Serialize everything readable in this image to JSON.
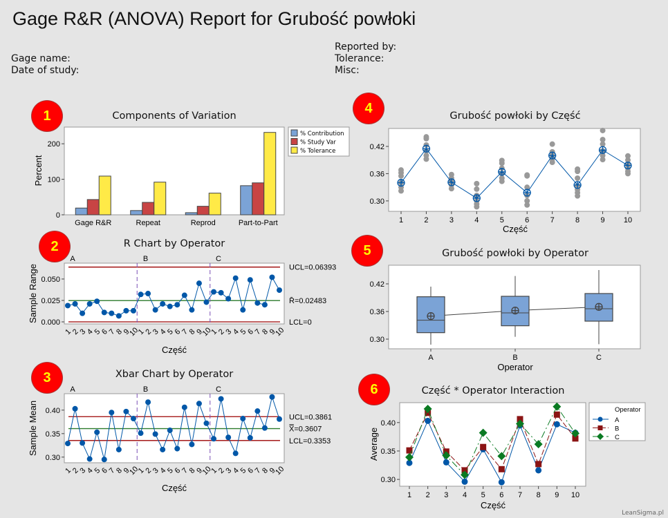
{
  "title": "Gage R&R (ANOVA) Report for Grubość powłoki",
  "header": {
    "gage_name": "Gage name:",
    "date_of_study": "Date of study:",
    "reported_by": "Reported by:",
    "tolerance": "Tolerance:",
    "misc": "Misc:"
  },
  "badges": [
    "1",
    "2",
    "3",
    "4",
    "5",
    "6"
  ],
  "watermark": "LeanSigma.pl",
  "colors": {
    "contribution": "#7ba3d6",
    "study_var": "#c84444",
    "tolerance": "#ffea47",
    "series_a": "#0057a8",
    "series_b": "#8b1414",
    "series_c": "#0a7a22",
    "limit": "#9b0000",
    "center": "#2a7a2a",
    "divider": "#7a4fb5",
    "grey": "#999999"
  },
  "chart_data": [
    {
      "type": "bar",
      "title": "Components of Variation",
      "ylabel": "Percent",
      "xlabel": "",
      "categories": [
        "Gage R&R",
        "Repeat",
        "Reprod",
        "Part-to-Part"
      ],
      "series": [
        {
          "name": "% Contribution",
          "values": [
            19,
            12,
            6,
            82
          ]
        },
        {
          "name": "% Study Var",
          "values": [
            43,
            35,
            24,
            90
          ]
        },
        {
          "name": "% Tolerance",
          "values": [
            109,
            92,
            61,
            232
          ]
        }
      ],
      "ylim": [
        0,
        247
      ],
      "yticks": [
        0,
        100,
        200
      ],
      "ytick_labels": [
        "0",
        "100",
        "200"
      ],
      "legend": "right"
    },
    {
      "type": "line",
      "title": "R Chart by Operator",
      "ylabel": "Sample Range",
      "xlabel": "Część",
      "operators": [
        "A",
        "B",
        "C"
      ],
      "parts": [
        "1",
        "2",
        "3",
        "4",
        "5",
        "6",
        "7",
        "8",
        "9",
        "10"
      ],
      "values": [
        [
          0.019,
          0.021,
          0.01,
          0.021,
          0.024,
          0.011,
          0.01,
          0.007,
          0.013,
          0.013
        ],
        [
          0.032,
          0.033,
          0.014,
          0.021,
          0.018,
          0.02,
          0.031,
          0.014,
          0.045,
          0.023
        ],
        [
          0.035,
          0.034,
          0.027,
          0.051,
          0.014,
          0.049,
          0.022,
          0.02,
          0.052,
          0.037
        ]
      ],
      "ucl": 0.06393,
      "center": 0.02483,
      "lcl": 0,
      "limit_labels": [
        "UCL=0.06393",
        "R̄=0.02483",
        "LCL=0"
      ],
      "ylim": [
        -0.0024,
        0.0685
      ],
      "yticks": [
        0,
        0.025,
        0.05
      ],
      "ytick_labels": [
        "0.000",
        "0.025",
        "0.050"
      ]
    },
    {
      "type": "line",
      "title": "Xbar Chart by Operator",
      "ylabel": "Sample Mean",
      "xlabel": "Część",
      "operators": [
        "A",
        "B",
        "C"
      ],
      "parts": [
        "1",
        "2",
        "3",
        "4",
        "5",
        "6",
        "7",
        "8",
        "9",
        "10"
      ],
      "values": [
        [
          0.329,
          0.403,
          0.33,
          0.296,
          0.353,
          0.295,
          0.395,
          0.316,
          0.397,
          0.382
        ],
        [
          0.351,
          0.417,
          0.349,
          0.316,
          0.357,
          0.318,
          0.406,
          0.327,
          0.414,
          0.372
        ],
        [
          0.339,
          0.424,
          0.342,
          0.308,
          0.382,
          0.341,
          0.398,
          0.362,
          0.428,
          0.381
        ]
      ],
      "ucl": 0.3861,
      "center": 0.3607,
      "lcl": 0.3353,
      "limit_labels": [
        "UCL=0.3861",
        "X̿=0.3607",
        "LCL=0.3353"
      ],
      "ylim": [
        0.288,
        0.435
      ],
      "yticks": [
        0.3,
        0.35,
        0.4
      ],
      "ytick_labels": [
        "0.30",
        "0.35",
        "0.40"
      ]
    },
    {
      "type": "scatter",
      "title": "Grubość powłoki by Część",
      "xlabel": "Część",
      "ylabel": "",
      "categories": [
        "1",
        "2",
        "3",
        "4",
        "5",
        "6",
        "7",
        "8",
        "9",
        "10"
      ],
      "means": [
        0.34,
        0.415,
        0.341,
        0.306,
        0.364,
        0.318,
        0.4,
        0.335,
        0.412,
        0.378
      ],
      "points": [
        [
          0.322,
          0.33,
          0.34,
          0.355,
          0.362,
          0.368
        ],
        [
          0.392,
          0.4,
          0.41,
          0.423,
          0.437,
          0.441
        ],
        [
          0.327,
          0.335,
          0.342,
          0.35,
          0.358
        ],
        [
          0.287,
          0.293,
          0.3,
          0.312,
          0.326,
          0.338
        ],
        [
          0.343,
          0.35,
          0.36,
          0.372,
          0.383,
          0.389
        ],
        [
          0.291,
          0.3,
          0.312,
          0.33,
          0.355,
          0.357
        ],
        [
          0.385,
          0.392,
          0.4,
          0.408,
          0.425
        ],
        [
          0.311,
          0.318,
          0.325,
          0.333,
          0.35,
          0.365,
          0.37
        ],
        [
          0.391,
          0.4,
          0.41,
          0.425,
          0.435,
          0.455
        ],
        [
          0.36,
          0.365,
          0.372,
          0.38,
          0.39,
          0.399
        ]
      ],
      "ylim": [
        0.277,
        0.4595
      ],
      "yticks": [
        0.3,
        0.36,
        0.42
      ],
      "ytick_labels": [
        "0.30",
        "0.36",
        "0.42"
      ]
    },
    {
      "type": "box",
      "title": "Grubość powłoki by Operator",
      "xlabel": "Operator",
      "ylabel": "",
      "categories": [
        "A",
        "B",
        "C"
      ],
      "boxes": [
        {
          "min": 0.288,
          "q1": 0.314,
          "median": 0.341,
          "q3": 0.392,
          "max": 0.414,
          "mean": 0.35
        },
        {
          "min": 0.305,
          "q1": 0.329,
          "median": 0.357,
          "q3": 0.393,
          "max": 0.437,
          "mean": 0.362
        },
        {
          "min": 0.289,
          "q1": 0.339,
          "median": 0.366,
          "q3": 0.399,
          "max": 0.45,
          "mean": 0.37
        }
      ],
      "ylim": [
        0.279,
        0.4605
      ],
      "yticks": [
        0.3,
        0.36,
        0.42
      ],
      "ytick_labels": [
        "0.30",
        "0.36",
        "0.42"
      ]
    },
    {
      "type": "line",
      "title": "Część * Operator Interaction",
      "xlabel": "Część",
      "ylabel": "Average",
      "categories": [
        "1",
        "2",
        "3",
        "4",
        "5",
        "6",
        "7",
        "8",
        "9",
        "10"
      ],
      "legend_title": "Operator",
      "series": [
        {
          "name": "A",
          "values": [
            0.329,
            0.403,
            0.33,
            0.296,
            0.353,
            0.295,
            0.395,
            0.316,
            0.397,
            0.382
          ]
        },
        {
          "name": "B",
          "values": [
            0.351,
            0.417,
            0.349,
            0.316,
            0.357,
            0.318,
            0.406,
            0.327,
            0.414,
            0.372
          ]
        },
        {
          "name": "C",
          "values": [
            0.339,
            0.424,
            0.342,
            0.308,
            0.382,
            0.341,
            0.398,
            0.362,
            0.428,
            0.381
          ]
        }
      ],
      "ylim": [
        0.288,
        0.435
      ],
      "yticks": [
        0.3,
        0.35,
        0.4
      ],
      "ytick_labels": [
        "0.30",
        "0.35",
        "0.40"
      ],
      "legend": "right"
    }
  ]
}
